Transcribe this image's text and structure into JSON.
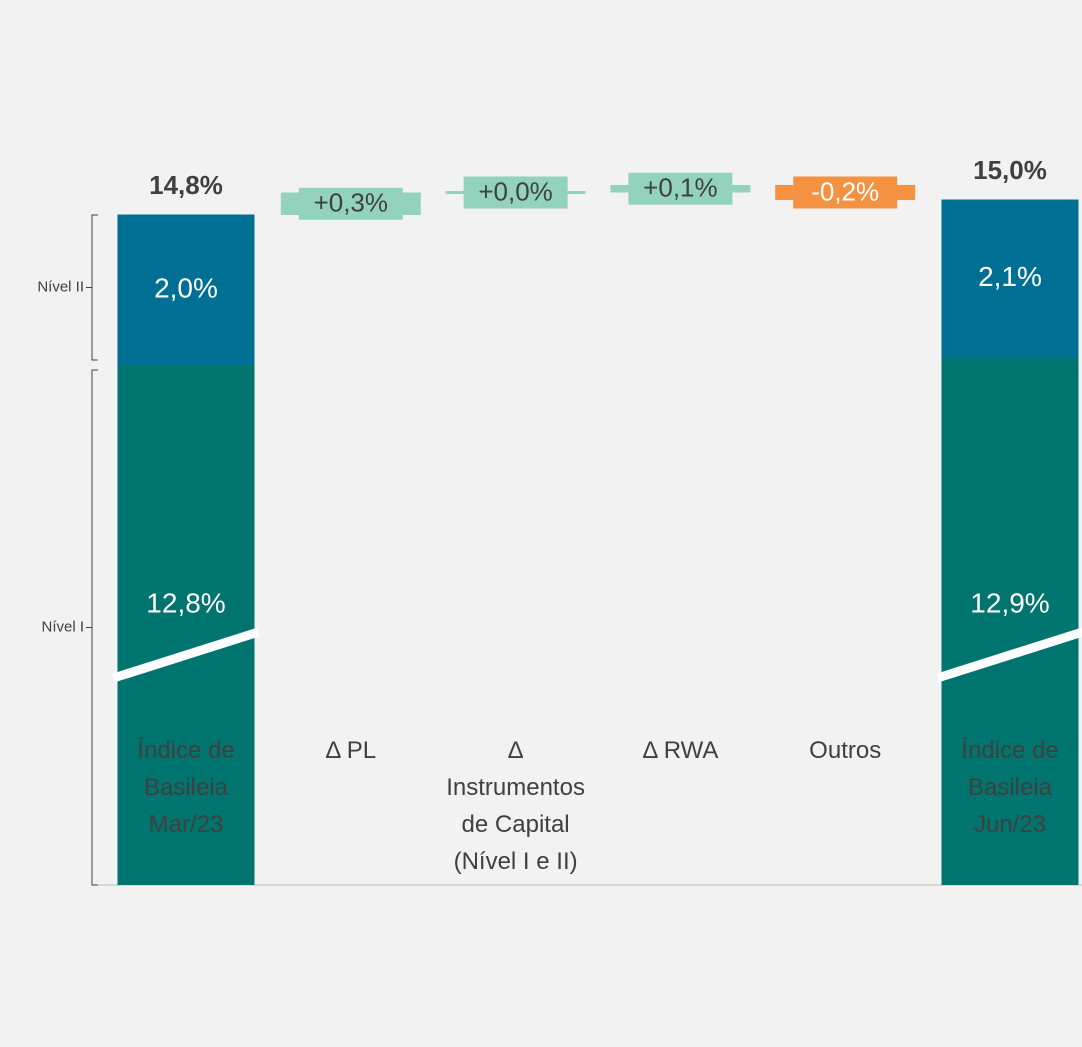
{
  "chart_data": {
    "type": "waterfall",
    "categories": [
      "Índice de\nBasileia\nMar/23",
      "Δ PL",
      "Δ\nInstrumentos\nde Capital\n(Nível I e II)",
      "Δ RWA",
      "Outros",
      "Índice de\nBasileia\nJun/23"
    ],
    "values": [
      14.8,
      0.3,
      0.0,
      0.1,
      -0.2,
      15.0
    ],
    "value_labels": [
      "14,8%",
      "+0,3%",
      "+0,0%",
      "+0,1%",
      "-0,2%",
      "15,0%"
    ],
    "increase_color": "#93d3bd",
    "decrease_color": "#f59242",
    "series": [
      {
        "name": "Nível I",
        "color": "#00746f",
        "values": [
          12.8,
          null,
          null,
          null,
          null,
          12.9
        ],
        "value_labels": [
          "12,8%",
          null,
          null,
          null,
          null,
          "12,9%"
        ]
      },
      {
        "name": "Nível II",
        "color": "#006f94",
        "values": [
          2.0,
          null,
          null,
          null,
          null,
          2.1
        ],
        "value_labels": [
          "2,0%",
          null,
          null,
          null,
          null,
          "2,1%"
        ]
      }
    ],
    "ylim": [
      0,
      17
    ]
  }
}
